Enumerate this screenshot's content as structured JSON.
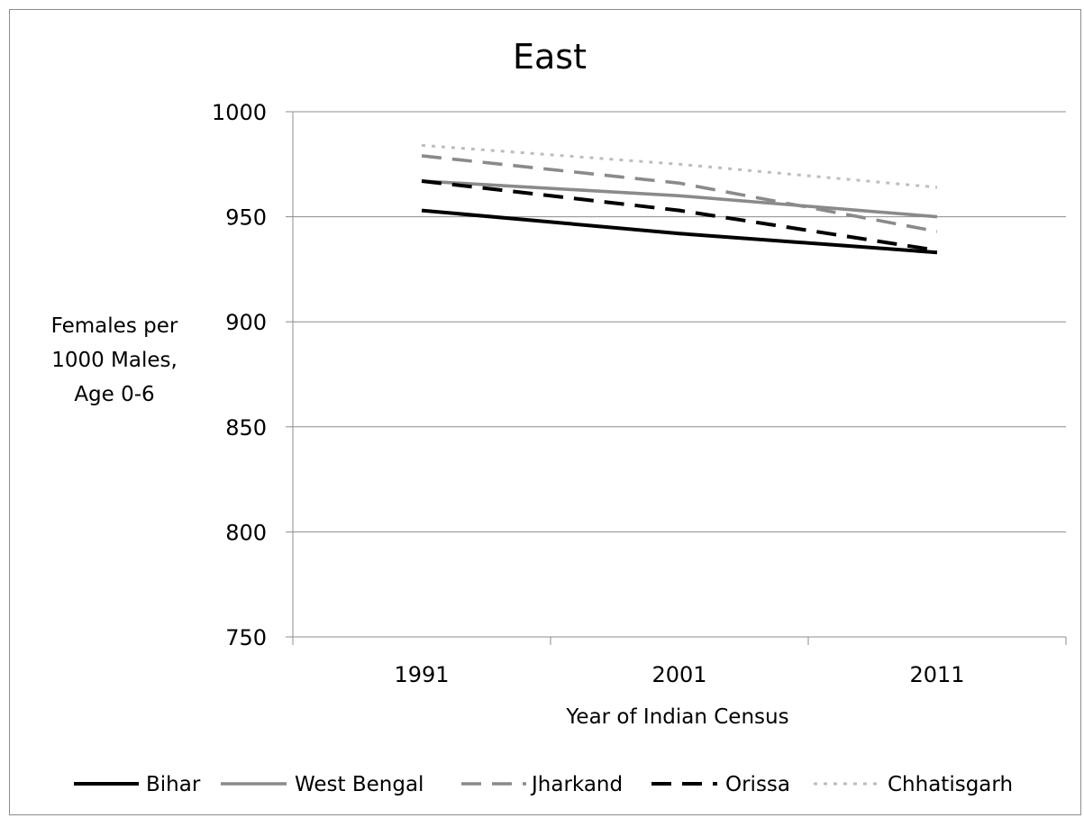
{
  "chart_data": {
    "type": "line",
    "title": "East",
    "xlabel": "Year of Indian Census",
    "ylabel_lines": [
      "Females per",
      "1000 Males,",
      "Age 0-6"
    ],
    "categories": [
      "1991",
      "2001",
      "2011"
    ],
    "ylim": [
      750,
      1000
    ],
    "yticks": [
      750,
      800,
      850,
      900,
      950,
      1000
    ],
    "grid": true,
    "legend_position": "bottom",
    "series": [
      {
        "name": "Bihar",
        "values": [
          953,
          942,
          933
        ],
        "color": "#000000",
        "dash": "solid"
      },
      {
        "name": "West Bengal",
        "values": [
          967,
          960,
          950
        ],
        "color": "#8a8a8a",
        "dash": "solid"
      },
      {
        "name": "Jharkand",
        "values": [
          979,
          966,
          943
        ],
        "color": "#8a8a8a",
        "dash": "dashed"
      },
      {
        "name": "Orissa",
        "values": [
          967,
          953,
          934
        ],
        "color": "#000000",
        "dash": "dashed"
      },
      {
        "name": "Chhatisgarh",
        "values": [
          984,
          975,
          964
        ],
        "color": "#bdbdbd",
        "dash": "dotted"
      }
    ]
  }
}
